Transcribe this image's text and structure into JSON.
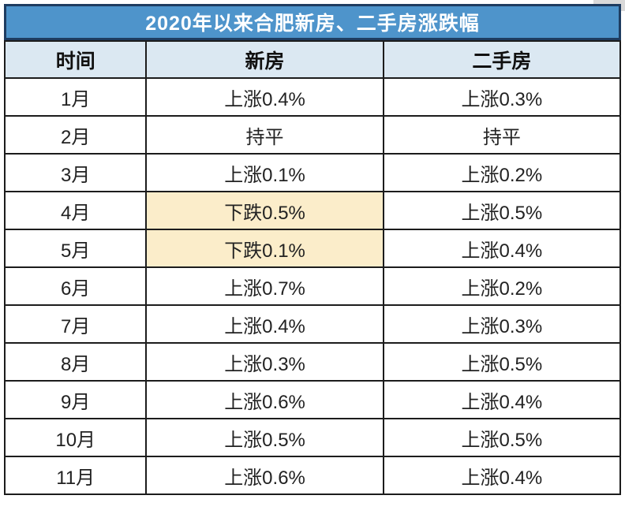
{
  "page": {
    "title": "2020年以来合肥新房、二手房涨跌幅"
  },
  "table": {
    "columns": [
      "时间",
      "新房",
      "二手房"
    ],
    "rows": [
      {
        "month": "1月",
        "new_home": "上涨0.4%",
        "second_hand": "上涨0.3%",
        "new_home_highlight": false
      },
      {
        "month": "2月",
        "new_home": "持平",
        "second_hand": "持平",
        "new_home_highlight": false
      },
      {
        "month": "3月",
        "new_home": "上涨0.1%",
        "second_hand": "上涨0.2%",
        "new_home_highlight": false
      },
      {
        "month": "4月",
        "new_home": "下跌0.5%",
        "second_hand": "上涨0.5%",
        "new_home_highlight": true
      },
      {
        "month": "5月",
        "new_home": "下跌0.1%",
        "second_hand": "上涨0.4%",
        "new_home_highlight": true
      },
      {
        "month": "6月",
        "new_home": "上涨0.7%",
        "second_hand": "上涨0.2%",
        "new_home_highlight": false
      },
      {
        "month": "7月",
        "new_home": "上涨0.4%",
        "second_hand": "上涨0.3%",
        "new_home_highlight": false
      },
      {
        "month": "8月",
        "new_home": "上涨0.3%",
        "second_hand": "上涨0.5%",
        "new_home_highlight": false
      },
      {
        "month": "9月",
        "new_home": "上涨0.6%",
        "second_hand": "上涨0.4%",
        "new_home_highlight": false
      },
      {
        "month": "10月",
        "new_home": "上涨0.5%",
        "second_hand": "上涨0.5%",
        "new_home_highlight": false
      },
      {
        "month": "11月",
        "new_home": "上涨0.6%",
        "second_hand": "上涨0.4%",
        "new_home_highlight": false
      }
    ]
  },
  "colors": {
    "title_bg": "#4e94cb",
    "title_border": "#1e3c60",
    "title_text": "#ffffff",
    "header_bg": "#dbe8f2",
    "header_text": "#111111",
    "cell_text": "#222222",
    "highlight_bg": "#fbedca",
    "grid_border": "#1c1c1c"
  },
  "chart_data": {
    "type": "table",
    "title": "2020年以来合肥新房、二手房涨跌幅",
    "columns": [
      "时间",
      "新房",
      "二手房"
    ],
    "rows": [
      [
        "1月",
        "上涨0.4%",
        "上涨0.3%"
      ],
      [
        "2月",
        "持平",
        "持平"
      ],
      [
        "3月",
        "上涨0.1%",
        "上涨0.2%"
      ],
      [
        "4月",
        "下跌0.5%",
        "上涨0.5%"
      ],
      [
        "5月",
        "下跌0.1%",
        "上涨0.4%"
      ],
      [
        "6月",
        "上涨0.7%",
        "上涨0.2%"
      ],
      [
        "7月",
        "上涨0.4%",
        "上涨0.3%"
      ],
      [
        "8月",
        "上涨0.3%",
        "上涨0.5%"
      ],
      [
        "9月",
        "上涨0.6%",
        "上涨0.4%"
      ],
      [
        "10月",
        "上涨0.5%",
        "上涨0.5%"
      ],
      [
        "11月",
        "上涨0.6%",
        "上涨0.4%"
      ]
    ],
    "highlighted_cells": [
      {
        "row": "4月",
        "column": "新房",
        "value": "下跌0.5%",
        "highlight_color": "#fbedca"
      },
      {
        "row": "5月",
        "column": "新房",
        "value": "下跌0.1%",
        "highlight_color": "#fbedca"
      }
    ],
    "notes": "下跌 (decline) cells in 新房 column are highlighted pale yellow; all other cells white"
  }
}
